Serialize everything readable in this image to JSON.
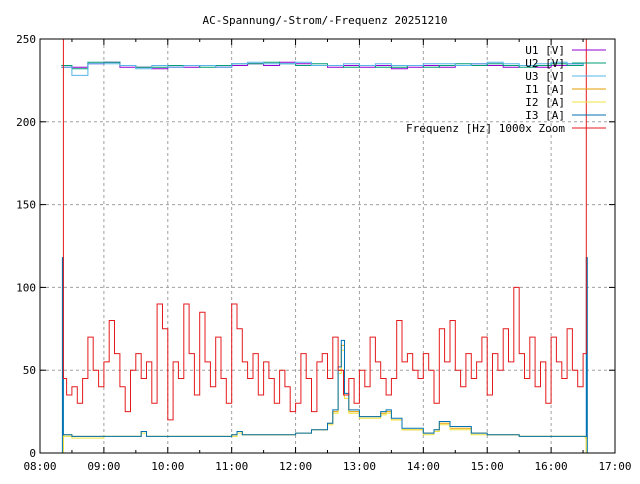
{
  "chart_data": {
    "type": "line",
    "title": "AC-Spannung/-Strom/-Frequenz 20251210",
    "xlabel": "",
    "ylabel": "",
    "xlim": [
      "08:00",
      "17:00"
    ],
    "ylim": [
      0,
      250
    ],
    "x_ticks": [
      "08:00",
      "09:00",
      "10:00",
      "11:00",
      "12:00",
      "13:00",
      "14:00",
      "15:00",
      "16:00",
      "17:00"
    ],
    "y_ticks": [
      "0",
      "50",
      "100",
      "150",
      "200",
      "250"
    ],
    "grid": true,
    "legend_position": "top-right",
    "voltage_times": [
      "08:20",
      "08:30",
      "08:45",
      "09:00",
      "09:15",
      "09:30",
      "09:45",
      "10:00",
      "10:15",
      "10:30",
      "10:45",
      "11:00",
      "11:15",
      "11:30",
      "11:45",
      "12:00",
      "12:15",
      "12:30",
      "12:45",
      "13:00",
      "13:15",
      "13:30",
      "13:45",
      "14:00",
      "14:15",
      "14:30",
      "14:45",
      "15:00",
      "15:15",
      "15:30",
      "15:45",
      "16:00",
      "16:15",
      "16:30"
    ],
    "current_times": [
      "08:20",
      "08:21",
      "08:22",
      "08:30",
      "09:00",
      "09:30",
      "09:35",
      "09:40",
      "10:00",
      "10:30",
      "11:00",
      "11:05",
      "11:10",
      "11:30",
      "12:00",
      "12:15",
      "12:30",
      "12:35",
      "12:40",
      "12:43",
      "12:46",
      "12:50",
      "13:00",
      "13:10",
      "13:20",
      "13:25",
      "13:30",
      "13:40",
      "14:00",
      "14:10",
      "14:15",
      "14:25",
      "14:45",
      "15:00",
      "15:30",
      "16:00",
      "16:30",
      "16:32",
      "16:33",
      "16:34"
    ],
    "series": [
      {
        "name": "U1 [V]",
        "color": "#9400d3",
        "x_key": "voltage_times",
        "values": [
          233,
          233,
          235,
          236,
          233,
          233,
          232,
          233,
          233,
          234,
          233,
          234,
          235,
          234,
          236,
          235,
          234,
          233,
          234,
          233,
          234,
          232,
          233,
          234,
          233,
          234,
          235,
          234,
          233,
          234,
          233,
          234,
          235,
          234
        ]
      },
      {
        "name": "U2 [V]",
        "color": "#009e73",
        "x_key": "voltage_times",
        "values": [
          234,
          232,
          236,
          236,
          234,
          233,
          233,
          234,
          234,
          233,
          234,
          235,
          235,
          236,
          235,
          234,
          235,
          234,
          233,
          234,
          233,
          233,
          234,
          233,
          234,
          235,
          234,
          235,
          234,
          233,
          234,
          235,
          234,
          235
        ]
      },
      {
        "name": "U3 [V]",
        "color": "#56b4e9",
        "x_key": "voltage_times",
        "values": [
          233,
          228,
          235,
          235,
          234,
          232,
          234,
          233,
          234,
          234,
          233,
          235,
          236,
          235,
          235,
          236,
          234,
          234,
          235,
          234,
          235,
          234,
          234,
          235,
          235,
          234,
          235,
          236,
          235,
          234,
          235,
          236,
          235,
          234
        ]
      },
      {
        "name": "I1 [A]",
        "color": "#e69f00",
        "x_key": "current_times",
        "values": [
          0,
          0,
          11,
          10,
          10,
          10,
          13,
          10,
          10,
          10,
          11,
          13,
          11,
          11,
          12,
          14,
          18,
          25,
          50,
          65,
          35,
          25,
          22,
          22,
          24,
          25,
          20,
          14,
          12,
          14,
          18,
          15,
          12,
          11,
          10,
          10,
          10,
          10,
          0,
          0
        ]
      },
      {
        "name": "I2 [A]",
        "color": "#f0e442",
        "x_key": "current_times",
        "values": [
          0,
          0,
          10,
          9,
          10,
          10,
          12,
          10,
          10,
          10,
          10,
          12,
          11,
          11,
          12,
          14,
          17,
          24,
          48,
          62,
          33,
          24,
          21,
          21,
          23,
          24,
          20,
          14,
          11,
          13,
          17,
          14,
          11,
          11,
          10,
          10,
          10,
          9,
          0,
          0
        ]
      },
      {
        "name": "I3 [A]",
        "color": "#0072b2",
        "x_key": "current_times",
        "values": [
          0,
          118,
          11,
          10,
          10,
          10,
          13,
          10,
          10,
          10,
          11,
          13,
          11,
          11,
          12,
          14,
          18,
          26,
          52,
          68,
          36,
          26,
          22,
          22,
          25,
          26,
          21,
          15,
          12,
          14,
          19,
          16,
          12,
          11,
          10,
          10,
          10,
          10,
          118,
          0
        ]
      },
      {
        "name": "Frequenz [Hz] 1000x Zoom",
        "color": "#e41a1c",
        "x_key": "freq_times",
        "values": [
          250,
          45,
          35,
          40,
          30,
          45,
          70,
          50,
          40,
          55,
          80,
          60,
          40,
          25,
          50,
          60,
          45,
          55,
          30,
          90,
          75,
          20,
          55,
          45,
          90,
          60,
          35,
          85,
          55,
          40,
          70,
          45,
          30,
          90,
          75,
          55,
          45,
          60,
          35,
          55,
          45,
          30,
          50,
          40,
          25,
          30,
          60,
          45,
          25,
          55,
          60,
          45,
          70,
          50,
          35,
          45,
          30,
          50,
          40,
          70,
          55,
          45,
          35,
          45,
          80,
          55,
          60,
          50,
          45,
          60,
          50,
          30,
          75,
          55,
          80,
          50,
          40,
          60,
          45,
          55,
          70,
          35,
          60,
          50,
          75,
          55,
          100,
          60,
          45,
          70,
          40,
          55,
          30,
          70,
          55,
          45,
          75,
          50,
          40,
          60,
          250
        ]
      }
    ],
    "freq_times": [
      "08:20",
      "08:22",
      "08:25",
      "08:30",
      "08:35",
      "08:40",
      "08:45",
      "08:50",
      "08:55",
      "09:00",
      "09:05",
      "09:10",
      "09:15",
      "09:20",
      "09:25",
      "09:30",
      "09:35",
      "09:40",
      "09:45",
      "09:50",
      "09:55",
      "10:00",
      "10:05",
      "10:10",
      "10:15",
      "10:20",
      "10:25",
      "10:30",
      "10:35",
      "10:40",
      "10:45",
      "10:50",
      "10:55",
      "11:00",
      "11:05",
      "11:10",
      "11:15",
      "11:20",
      "11:25",
      "11:30",
      "11:35",
      "11:40",
      "11:45",
      "11:50",
      "11:55",
      "12:00",
      "12:05",
      "12:10",
      "12:15",
      "12:20",
      "12:25",
      "12:30",
      "12:35",
      "12:40",
      "12:45",
      "12:50",
      "12:55",
      "13:00",
      "13:05",
      "13:10",
      "13:15",
      "13:20",
      "13:25",
      "13:30",
      "13:35",
      "13:40",
      "13:45",
      "13:50",
      "13:55",
      "14:00",
      "14:05",
      "14:10",
      "14:15",
      "14:20",
      "14:25",
      "14:30",
      "14:35",
      "14:40",
      "14:45",
      "14:50",
      "14:55",
      "15:00",
      "15:05",
      "15:10",
      "15:15",
      "15:20",
      "15:25",
      "15:30",
      "15:35",
      "15:40",
      "15:45",
      "15:50",
      "15:55",
      "16:00",
      "16:05",
      "16:10",
      "16:15",
      "16:20",
      "16:25",
      "16:30",
      "16:33"
    ]
  }
}
